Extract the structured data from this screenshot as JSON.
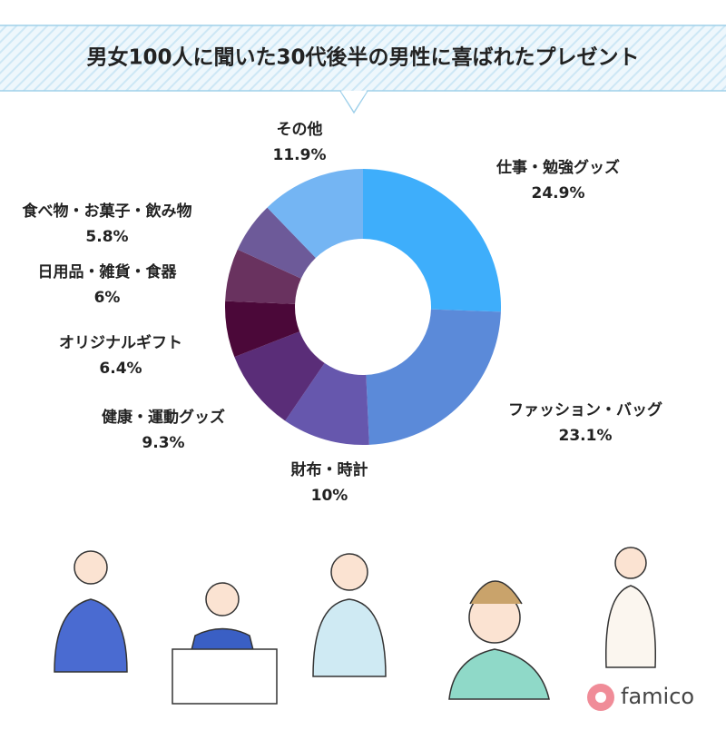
{
  "chart_data": {
    "type": "pie",
    "title": "男女100人に聞いた30代後半の男性に喜ばれたプレゼント",
    "categories": [
      "仕事・勉強グッズ",
      "ファッション・バッグ",
      "財布・時計",
      "健康・運動グッズ",
      "オリジナルギフト",
      "日用品・雑貨・食器",
      "食べ物・お菓子・飲み物",
      "その他"
    ],
    "values": [
      24.9,
      23.1,
      10,
      9.3,
      6.4,
      6,
      5.8,
      11.9
    ],
    "value_labels": [
      "24.9%",
      "23.1%",
      "10%",
      "9.3%",
      "6.4%",
      "6%",
      "5.8%",
      "11.9%"
    ],
    "colors": [
      "#3eaefb",
      "#5b8ad9",
      "#6657ad",
      "#5a2d78",
      "#4b0839",
      "#69325f",
      "#6d5a99",
      "#74b5f3"
    ]
  },
  "logo": "famico"
}
